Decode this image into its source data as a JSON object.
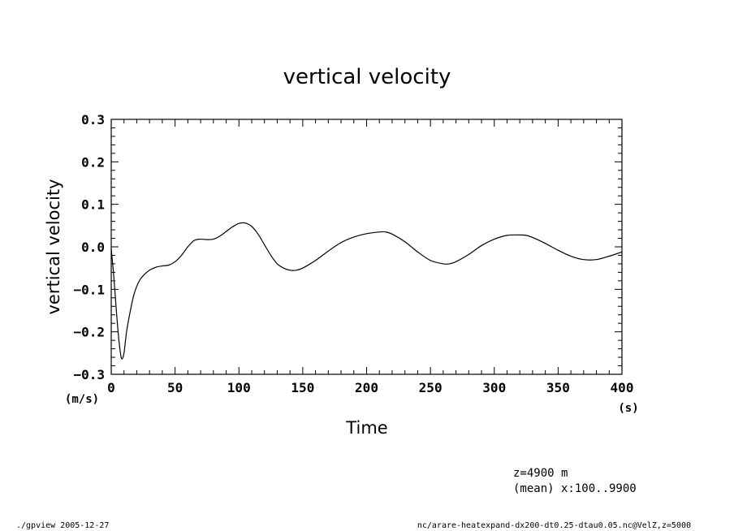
{
  "chart_data": {
    "type": "line",
    "title": "vertical velocity",
    "xlabel": "Time",
    "ylabel": "vertical velocity",
    "x_unit": "(s)",
    "y_unit": "(m/s)",
    "xlim": [
      0,
      400
    ],
    "ylim": [
      -0.3,
      0.3
    ],
    "x_ticks": [
      "0",
      "50",
      "100",
      "150",
      "200",
      "250",
      "300",
      "350",
      "400"
    ],
    "y_ticks": [
      "0.3",
      "0.2",
      "0.1",
      "0.0",
      "−0.1",
      "−0.2",
      "−0.3"
    ],
    "grid": false,
    "series": [
      {
        "x": [
          0,
          2,
          4,
          6,
          8,
          10,
          12,
          15,
          18,
          22,
          26,
          30,
          35,
          40,
          45,
          50,
          55,
          60,
          65,
          70,
          75,
          80,
          85,
          90,
          95,
          100,
          105,
          110,
          115,
          120,
          125,
          130,
          135,
          140,
          145,
          150,
          160,
          170,
          180,
          190,
          200,
          210,
          215,
          220,
          230,
          240,
          250,
          260,
          265,
          270,
          280,
          290,
          300,
          310,
          320,
          325,
          330,
          340,
          350,
          360,
          370,
          380,
          390,
          400
        ],
        "y": [
          -0.005,
          -0.07,
          -0.15,
          -0.22,
          -0.262,
          -0.25,
          -0.2,
          -0.15,
          -0.11,
          -0.08,
          -0.065,
          -0.055,
          -0.048,
          -0.045,
          -0.043,
          -0.035,
          -0.02,
          0.0,
          0.015,
          0.018,
          0.017,
          0.018,
          0.025,
          0.036,
          0.047,
          0.055,
          0.056,
          0.048,
          0.03,
          0.005,
          -0.02,
          -0.04,
          -0.05,
          -0.055,
          -0.055,
          -0.05,
          -0.032,
          -0.01,
          0.01,
          0.023,
          0.031,
          0.035,
          0.035,
          0.03,
          0.012,
          -0.012,
          -0.032,
          -0.04,
          -0.04,
          -0.035,
          -0.018,
          0.003,
          0.018,
          0.027,
          0.028,
          0.027,
          0.022,
          0.008,
          -0.008,
          -0.022,
          -0.03,
          -0.03,
          -0.022,
          -0.012
        ]
      }
    ]
  },
  "annotations": {
    "line1": "z=4900 m",
    "line2": "(mean) x:100..9900"
  },
  "footer": {
    "left": "./gpview  2005-12-27",
    "right": "nc/arare-heatexpand-dx200-dt0.25-dtau0.05.nc@VelZ,z=5000"
  }
}
